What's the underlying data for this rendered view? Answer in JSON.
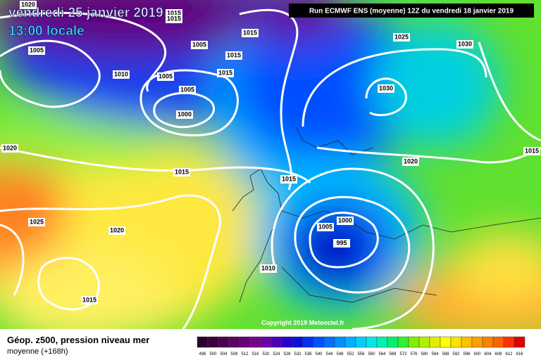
{
  "header": {
    "date": "vendredi 25 janvier 2019",
    "time": "13:00 locale"
  },
  "run": "Run ECMWF ENS (moyenne) 12Z du vendredi 18 janvier 2019",
  "copyright": "Copyright 2019 Meteociel.fr",
  "footer": {
    "title": "Géop. z500, pression niveau mer",
    "subtitle": "moyenne  (+168h)"
  },
  "scale": [
    496,
    500,
    504,
    508,
    512,
    516,
    520,
    524,
    528,
    532,
    536,
    540,
    544,
    548,
    552,
    556,
    560,
    564,
    568,
    572,
    576,
    580,
    584,
    588,
    592,
    596,
    600,
    604,
    608,
    612,
    616
  ],
  "isobar_labels": [
    1020,
    1015,
    1015,
    1005,
    1010,
    1005,
    1005,
    1015,
    1015,
    1015,
    1005,
    1000,
    1025,
    1030,
    1030,
    1020,
    1015,
    1015,
    1020,
    1015,
    1025,
    1020,
    1000,
    1005,
    995,
    1010,
    1015
  ]
}
